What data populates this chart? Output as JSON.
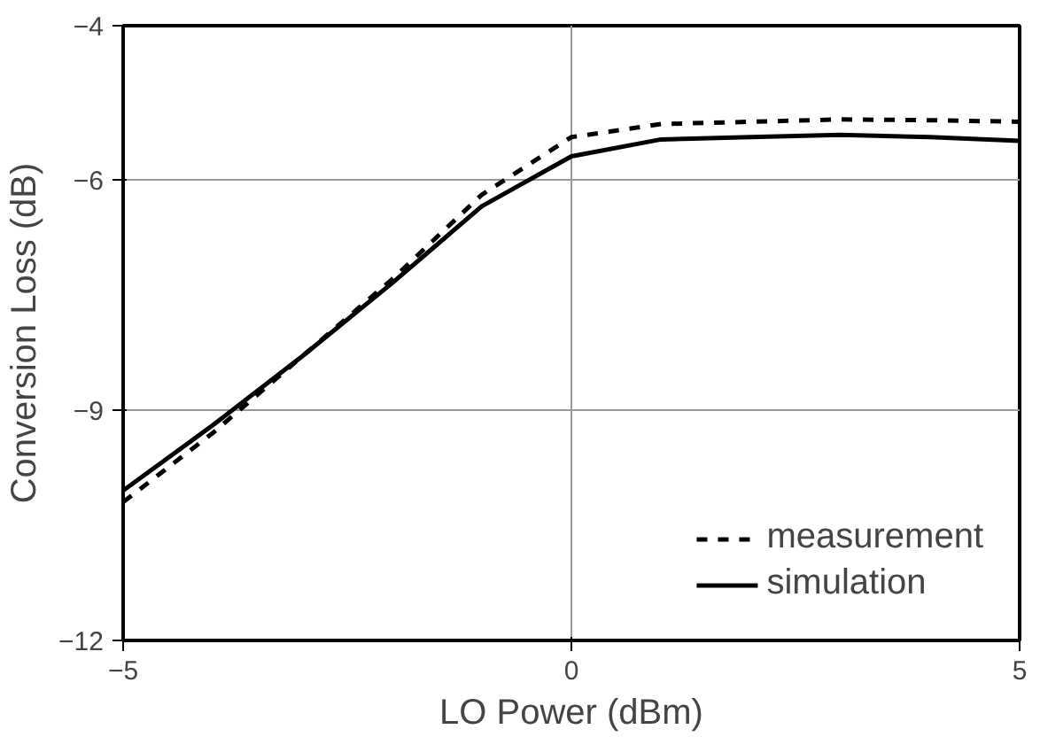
{
  "chart_data": {
    "type": "line",
    "xlabel": "LO Power (dBm)",
    "ylabel": "Conversion Loss (dB)",
    "x": [
      -5,
      -4,
      -3,
      -2,
      -1,
      0,
      1,
      2,
      3,
      4,
      5
    ],
    "series": [
      {
        "name": "measurement",
        "color": "#000000",
        "line_style": "dashed",
        "values": [
          -10.2,
          -9.3,
          -8.3,
          -7.3,
          -6.2,
          -5.45,
          -5.28,
          -5.25,
          -5.22,
          -5.23,
          -5.25
        ]
      },
      {
        "name": "simulation",
        "color": "#000000",
        "line_style": "solid",
        "values": [
          -10.05,
          -9.2,
          -8.3,
          -7.35,
          -6.35,
          -5.7,
          -5.48,
          -5.45,
          -5.42,
          -5.45,
          -5.5
        ]
      }
    ],
    "xlim": [
      -5,
      5
    ],
    "xticks": [
      -5,
      0,
      5
    ],
    "ylim": [
      -12,
      -4
    ],
    "yticks": [
      -12,
      -9,
      -6,
      -4
    ],
    "grid": true,
    "legend": "bottom right"
  }
}
